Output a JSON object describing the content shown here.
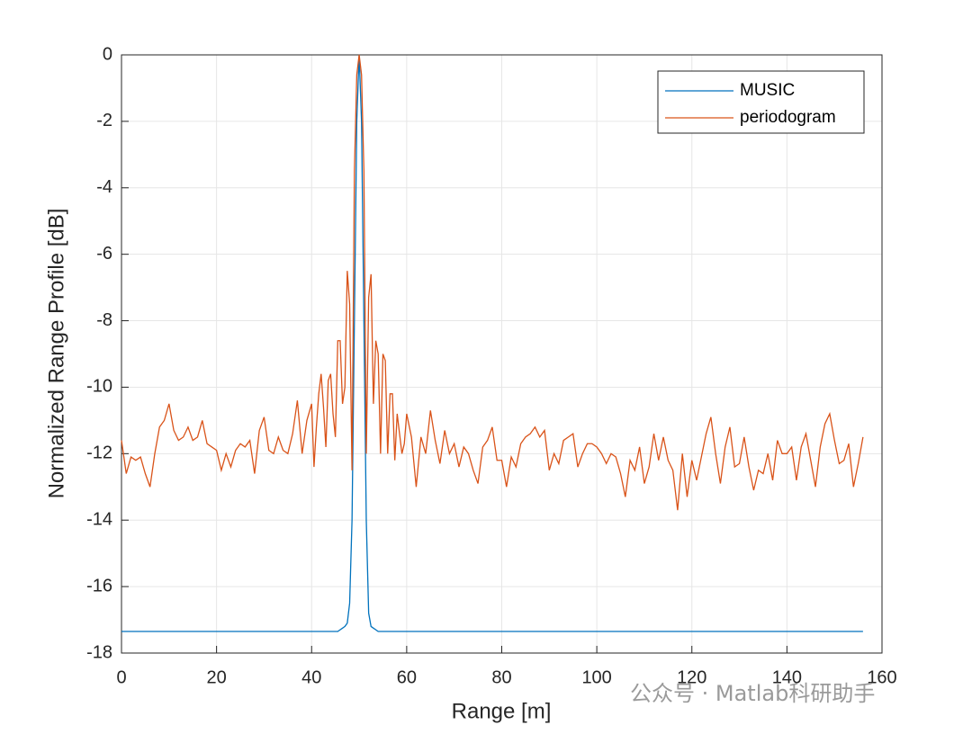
{
  "chart_data": {
    "type": "line",
    "xlabel": "Range [m]",
    "ylabel": "Normalized Range Profile [dB]",
    "xlim": [
      0,
      160
    ],
    "xticks": [
      0,
      20,
      40,
      60,
      80,
      100,
      120,
      140,
      160
    ],
    "ylim": [
      -18,
      0
    ],
    "yticks": [
      -18,
      -16,
      -14,
      -12,
      -10,
      -8,
      -6,
      -4,
      -2,
      0
    ],
    "grid": true,
    "legend": "top-right",
    "watermark": "公众号 · Matlab科研助手",
    "x": [
      0,
      1,
      2,
      3,
      4,
      5,
      6,
      7,
      8,
      9,
      10,
      11,
      12,
      13,
      14,
      15,
      16,
      17,
      18,
      19,
      20,
      21,
      22,
      23,
      24,
      25,
      26,
      27,
      28,
      29,
      30,
      31,
      32,
      33,
      34,
      35,
      36,
      37,
      38,
      39,
      40,
      40.5,
      41,
      41.5,
      42,
      42.5,
      43,
      43.5,
      44,
      44.5,
      45,
      45.5,
      46,
      46.5,
      47,
      47.5,
      48,
      48.5,
      49,
      49.5,
      50,
      50.5,
      51,
      51.5,
      52,
      52.5,
      53,
      53.5,
      54,
      54.5,
      55,
      55.5,
      56,
      56.5,
      57,
      57.5,
      58,
      58.5,
      59,
      59.5,
      60,
      61,
      62,
      63,
      64,
      65,
      66,
      67,
      68,
      69,
      70,
      71,
      72,
      73,
      74,
      75,
      76,
      77,
      78,
      79,
      80,
      81,
      82,
      83,
      84,
      85,
      86,
      87,
      88,
      89,
      90,
      91,
      92,
      93,
      94,
      95,
      96,
      97,
      98,
      99,
      100,
      101,
      102,
      103,
      104,
      105,
      106,
      107,
      108,
      109,
      110,
      111,
      112,
      113,
      114,
      115,
      116,
      117,
      118,
      119,
      120,
      121,
      122,
      123,
      124,
      125,
      126,
      127,
      128,
      129,
      130,
      131,
      132,
      133,
      134,
      135,
      136,
      137,
      138,
      139,
      140,
      141,
      142,
      143,
      144,
      145,
      146,
      147,
      148,
      149,
      150,
      151,
      152,
      153,
      154,
      155,
      156
    ],
    "series": [
      {
        "name": "MUSIC",
        "color": "#0072BD",
        "values": [
          -17.35,
          -17.35,
          -17.35,
          -17.35,
          -17.35,
          -17.35,
          -17.35,
          -17.35,
          -17.35,
          -17.35,
          -17.35,
          -17.35,
          -17.35,
          -17.35,
          -17.35,
          -17.35,
          -17.35,
          -17.35,
          -17.35,
          -17.35,
          -17.35,
          -17.35,
          -17.35,
          -17.35,
          -17.35,
          -17.35,
          -17.35,
          -17.35,
          -17.35,
          -17.35,
          -17.35,
          -17.35,
          -17.35,
          -17.35,
          -17.35,
          -17.35,
          -17.35,
          -17.35,
          -17.35,
          -17.35,
          -17.35,
          -17.35,
          -17.35,
          -17.35,
          -17.35,
          -17.35,
          -17.35,
          -17.35,
          -17.35,
          -17.35,
          -17.35,
          -17.35,
          -17.3,
          -17.25,
          -17.2,
          -17.1,
          -16.5,
          -14,
          -8,
          -2,
          0,
          -2,
          -8,
          -14,
          -16.8,
          -17.2,
          -17.25,
          -17.3,
          -17.35,
          -17.35,
          -17.35,
          -17.35,
          -17.35,
          -17.35,
          -17.35,
          -17.35,
          -17.35,
          -17.35,
          -17.35,
          -17.35,
          -17.35,
          -17.35,
          -17.35,
          -17.35,
          -17.35,
          -17.35,
          -17.35,
          -17.35,
          -17.35,
          -17.35,
          -17.35,
          -17.35,
          -17.35,
          -17.35,
          -17.35,
          -17.35,
          -17.35,
          -17.35,
          -17.35,
          -17.35,
          -17.35,
          -17.35,
          -17.35,
          -17.35,
          -17.35,
          -17.35,
          -17.35,
          -17.35,
          -17.35,
          -17.35,
          -17.35,
          -17.35,
          -17.35,
          -17.35,
          -17.35,
          -17.35,
          -17.35,
          -17.35,
          -17.35,
          -17.35,
          -17.35,
          -17.35,
          -17.35,
          -17.35,
          -17.35,
          -17.35,
          -17.35,
          -17.35,
          -17.35,
          -17.35,
          -17.35,
          -17.35,
          -17.35,
          -17.35,
          -17.35,
          -17.35,
          -17.35,
          -17.35,
          -17.35,
          -17.35,
          -17.35,
          -17.35,
          -17.35,
          -17.35,
          -17.35,
          -17.35,
          -17.35,
          -17.35,
          -17.35,
          -17.35,
          -17.35,
          -17.35,
          -17.35,
          -17.35,
          -17.35,
          -17.35,
          -17.35,
          -17.35,
          -17.35,
          -17.35,
          -17.35,
          -17.35,
          -17.35,
          -17.35,
          -17.35,
          -17.35,
          -17.35,
          -17.35,
          -17.35,
          -17.35,
          -17.35,
          -17.35,
          -17.35,
          -17.35,
          -17.35,
          -17.35,
          -17.35
        ]
      },
      {
        "name": "periodogram",
        "color": "#D95319",
        "values": [
          -11.6,
          -12.6,
          -12.1,
          -12.2,
          -12.1,
          -12.6,
          -13.0,
          -12.0,
          -11.2,
          -11.0,
          -10.5,
          -11.3,
          -11.6,
          -11.5,
          -11.2,
          -11.6,
          -11.5,
          -11.0,
          -11.7,
          -11.8,
          -11.9,
          -12.5,
          -12.0,
          -12.4,
          -11.9,
          -11.7,
          -11.8,
          -11.6,
          -12.6,
          -11.3,
          -10.9,
          -11.9,
          -12.0,
          -11.5,
          -11.9,
          -12.0,
          -11.4,
          -10.4,
          -12.0,
          -11.0,
          -10.5,
          -12.4,
          -11.2,
          -10.2,
          -9.6,
          -10.6,
          -11.8,
          -9.8,
          -9.6,
          -10.8,
          -11.5,
          -8.6,
          -8.6,
          -10.5,
          -10.0,
          -6.5,
          -7.5,
          -12.5,
          -3.5,
          -0.6,
          0,
          -0.6,
          -3.5,
          -12.0,
          -7.3,
          -6.6,
          -10.5,
          -8.6,
          -9.0,
          -12.0,
          -9.0,
          -9.2,
          -12.0,
          -10.2,
          -10.2,
          -12.2,
          -10.8,
          -11.4,
          -12.0,
          -11.7,
          -10.8,
          -11.5,
          -13.0,
          -11.5,
          -12.0,
          -10.7,
          -11.6,
          -12.3,
          -11.3,
          -12.0,
          -11.7,
          -12.4,
          -11.8,
          -12.0,
          -12.5,
          -12.9,
          -11.8,
          -11.6,
          -11.2,
          -12.2,
          -12.2,
          -13.0,
          -12.1,
          -12.4,
          -11.7,
          -11.5,
          -11.4,
          -11.2,
          -11.5,
          -11.3,
          -12.5,
          -12.0,
          -12.3,
          -11.6,
          -11.5,
          -11.4,
          -12.4,
          -12.0,
          -11.7,
          -11.7,
          -11.8,
          -12.0,
          -12.3,
          -12.0,
          -12.1,
          -12.6,
          -13.3,
          -12.2,
          -12.5,
          -11.8,
          -12.9,
          -12.4,
          -11.4,
          -12.2,
          -11.5,
          -12.2,
          -12.5,
          -13.7,
          -12.0,
          -13.3,
          -12.2,
          -12.8,
          -12.1,
          -11.4,
          -10.9,
          -12.0,
          -12.9,
          -11.8,
          -11.2,
          -12.4,
          -12.3,
          -11.5,
          -12.4,
          -13.1,
          -12.5,
          -12.6,
          -12.0,
          -12.8,
          -11.6,
          -12.0,
          -12.0,
          -11.8,
          -12.8,
          -11.8,
          -11.4,
          -12.2,
          -13.0,
          -11.8,
          -11.1,
          -10.8,
          -11.6,
          -12.3,
          -12.2,
          -11.7,
          -13.0,
          -12.3,
          -11.5
        ]
      }
    ]
  }
}
